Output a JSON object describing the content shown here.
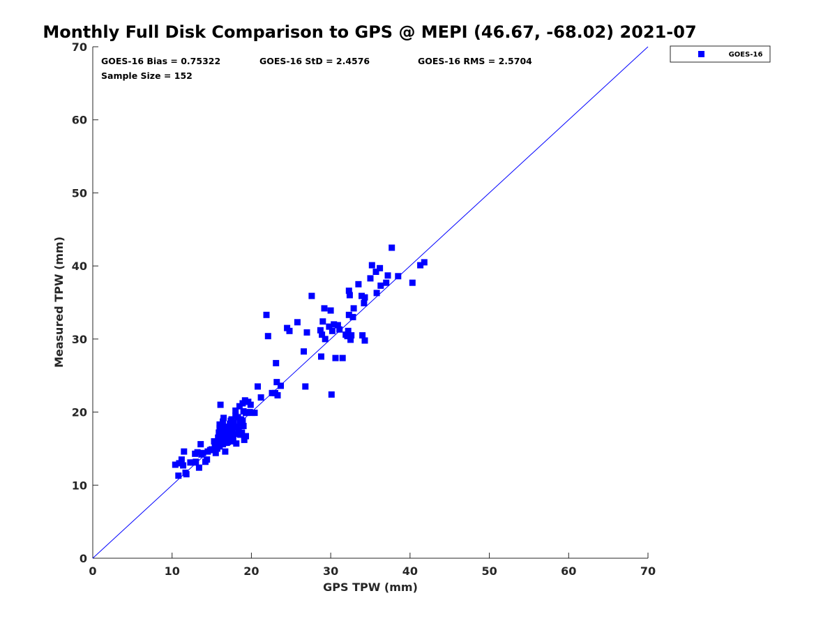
{
  "colors": {
    "series": "#0000ff",
    "axis": "#262626",
    "ref_line": "#0000ff"
  },
  "chart_data": {
    "type": "scatter",
    "title": "Monthly Full Disk Comparison to GPS @ MEPI (46.67, -68.02) 2021-07",
    "xlabel": "GPS TPW (mm)",
    "ylabel": "Measured TPW (mm)",
    "xlim": [
      0,
      70
    ],
    "ylim": [
      0,
      70
    ],
    "xticks": [
      "0",
      "10",
      "20",
      "30",
      "40",
      "50",
      "60",
      "70"
    ],
    "yticks": [
      "0",
      "10",
      "20",
      "30",
      "40",
      "50",
      "60",
      "70"
    ],
    "grid": false,
    "legend": {
      "placement": "outside-top-right",
      "entries": [
        "GOES-16"
      ]
    },
    "stats": {
      "bias": "GOES-16 Bias = 0.75322",
      "std": "GOES-16 StD = 2.4576",
      "rms": "GOES-16 RMS = 2.5704",
      "sample": "Sample Size = 152"
    },
    "reference_line": {
      "from": [
        0,
        0
      ],
      "to": [
        70,
        70
      ]
    },
    "series": [
      {
        "name": "GOES-16",
        "marker": "square",
        "points": [
          [
            10.4,
            12.8
          ],
          [
            10.8,
            11.3
          ],
          [
            10.9,
            13.0
          ],
          [
            11.2,
            13.5
          ],
          [
            11.4,
            12.7
          ],
          [
            11.5,
            14.6
          ],
          [
            11.7,
            11.7
          ],
          [
            11.8,
            11.5
          ],
          [
            12.3,
            13.1
          ],
          [
            12.7,
            13.1
          ],
          [
            12.9,
            14.3
          ],
          [
            13.0,
            13.2
          ],
          [
            13.2,
            14.5
          ],
          [
            13.4,
            12.4
          ],
          [
            13.6,
            15.6
          ],
          [
            13.7,
            14.2
          ],
          [
            13.9,
            14.4
          ],
          [
            14.2,
            13.2
          ],
          [
            14.4,
            13.5
          ],
          [
            14.5,
            14.6
          ],
          [
            14.8,
            14.8
          ],
          [
            15.0,
            14.9
          ],
          [
            15.3,
            16.0
          ],
          [
            15.5,
            14.4
          ],
          [
            15.7,
            15.0
          ],
          [
            15.8,
            16.5
          ],
          [
            15.9,
            17.2
          ],
          [
            16.0,
            18.3
          ],
          [
            16.1,
            21.0
          ],
          [
            16.0,
            15.3
          ],
          [
            16.1,
            16.0
          ],
          [
            16.2,
            17.5
          ],
          [
            16.3,
            18.1
          ],
          [
            16.4,
            15.6
          ],
          [
            16.5,
            16.8
          ],
          [
            16.5,
            19.2
          ],
          [
            16.6,
            15.8
          ],
          [
            16.7,
            14.6
          ],
          [
            16.8,
            17.2
          ],
          [
            16.9,
            16.2
          ],
          [
            17.0,
            18.0
          ],
          [
            17.1,
            16.6
          ],
          [
            17.2,
            17.5
          ],
          [
            17.3,
            18.4
          ],
          [
            17.4,
            16.0
          ],
          [
            17.5,
            19.0
          ],
          [
            17.6,
            17.8
          ],
          [
            17.7,
            16.4
          ],
          [
            17.8,
            18.6
          ],
          [
            17.9,
            17.0
          ],
          [
            18.0,
            20.2
          ],
          [
            18.1,
            15.7
          ],
          [
            18.2,
            18.0
          ],
          [
            18.3,
            19.3
          ],
          [
            18.4,
            17.6
          ],
          [
            18.5,
            20.8
          ],
          [
            18.6,
            18.5
          ],
          [
            18.7,
            19.0
          ],
          [
            18.8,
            17.2
          ],
          [
            18.9,
            21.2
          ],
          [
            19.0,
            18.1
          ],
          [
            19.1,
            16.2
          ],
          [
            19.2,
            21.6
          ],
          [
            19.3,
            16.7
          ],
          [
            19.3,
            19.9
          ],
          [
            19.6,
            21.4
          ],
          [
            19.8,
            20.0
          ],
          [
            19.9,
            21.0
          ],
          [
            20.1,
            19.9
          ],
          [
            20.4,
            19.9
          ],
          [
            16.2,
            16.6
          ],
          [
            16.6,
            17.9
          ],
          [
            17.0,
            15.9
          ],
          [
            17.4,
            18.8
          ],
          [
            18.3,
            17.0
          ],
          [
            18.9,
            18.8
          ],
          [
            19.0,
            20.1
          ],
          [
            15.8,
            15.9
          ],
          [
            16.3,
            17.0
          ],
          [
            17.7,
            18.2
          ],
          [
            20.8,
            23.5
          ],
          [
            21.2,
            22.0
          ],
          [
            21.9,
            33.3
          ],
          [
            22.1,
            30.4
          ],
          [
            22.6,
            22.6
          ],
          [
            23.0,
            22.6
          ],
          [
            23.1,
            26.7
          ],
          [
            23.2,
            24.1
          ],
          [
            23.3,
            22.3
          ],
          [
            23.7,
            23.6
          ],
          [
            24.5,
            31.5
          ],
          [
            24.8,
            31.1
          ],
          [
            25.8,
            32.3
          ],
          [
            26.6,
            28.3
          ],
          [
            26.8,
            23.5
          ],
          [
            27.0,
            30.9
          ],
          [
            27.6,
            35.9
          ],
          [
            28.7,
            31.2
          ],
          [
            28.8,
            27.6
          ],
          [
            28.9,
            30.6
          ],
          [
            29.0,
            32.4
          ],
          [
            29.2,
            34.2
          ],
          [
            29.3,
            30.0
          ],
          [
            29.8,
            31.7
          ],
          [
            30.0,
            33.9
          ],
          [
            30.1,
            22.4
          ],
          [
            30.2,
            31.1
          ],
          [
            30.4,
            32.0
          ],
          [
            30.6,
            27.4
          ],
          [
            30.9,
            31.9
          ],
          [
            31.1,
            31.3
          ],
          [
            31.5,
            27.4
          ],
          [
            31.9,
            30.6
          ],
          [
            32.1,
            30.4
          ],
          [
            32.2,
            31.1
          ],
          [
            32.3,
            36.6
          ],
          [
            32.3,
            33.3
          ],
          [
            32.4,
            36.0
          ],
          [
            32.5,
            29.9
          ],
          [
            32.6,
            30.5
          ],
          [
            32.8,
            33.0
          ],
          [
            32.9,
            34.2
          ],
          [
            33.5,
            37.5
          ],
          [
            33.9,
            35.9
          ],
          [
            34.0,
            30.5
          ],
          [
            34.2,
            34.9
          ],
          [
            34.3,
            35.7
          ],
          [
            34.3,
            29.8
          ],
          [
            35.0,
            38.3
          ],
          [
            35.2,
            40.1
          ],
          [
            35.7,
            39.2
          ],
          [
            35.8,
            36.3
          ],
          [
            36.2,
            39.7
          ],
          [
            36.3,
            37.3
          ],
          [
            37.0,
            37.7
          ],
          [
            37.2,
            38.7
          ],
          [
            37.7,
            42.5
          ],
          [
            38.5,
            38.6
          ],
          [
            40.3,
            37.7
          ],
          [
            41.3,
            40.1
          ],
          [
            41.8,
            40.5
          ],
          [
            16.0,
            17.8
          ],
          [
            16.4,
            18.7
          ],
          [
            17.2,
            16.1
          ],
          [
            18.0,
            19.5
          ],
          [
            16.8,
            17.5
          ],
          [
            17.5,
            17.0
          ],
          [
            19.5,
            19.9
          ],
          [
            15.4,
            15.5
          ],
          [
            16.9,
            15.8
          ],
          [
            18.6,
            16.9
          ],
          [
            17.9,
            17.9
          ]
        ]
      }
    ]
  }
}
